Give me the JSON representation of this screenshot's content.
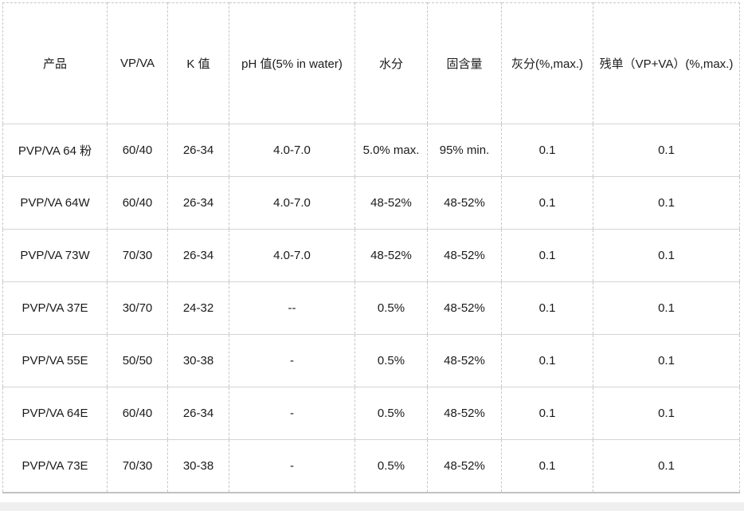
{
  "table": {
    "columns": [
      {
        "key": "product",
        "label": "产品"
      },
      {
        "key": "vpva",
        "label": "VP/VA"
      },
      {
        "key": "kvalue",
        "label": "K 值"
      },
      {
        "key": "ph",
        "label": "pH 值(5% in water)"
      },
      {
        "key": "moisture",
        "label": "水分"
      },
      {
        "key": "solids",
        "label": "固含量"
      },
      {
        "key": "ash",
        "label": "灰分(%,max.)"
      },
      {
        "key": "residual",
        "label": "残单（VP+VA）(%,max.)"
      }
    ],
    "rows": [
      [
        "PVP/VA 64 粉",
        "60/40",
        "26-34",
        "4.0-7.0",
        "5.0% max.",
        "95% min.",
        "0.1",
        "0.1"
      ],
      [
        "PVP/VA 64W",
        "60/40",
        "26-34",
        "4.0-7.0",
        "48-52%",
        "48-52%",
        "0.1",
        "0.1"
      ],
      [
        "PVP/VA 73W",
        "70/30",
        "26-34",
        "4.0-7.0",
        "48-52%",
        "48-52%",
        "0.1",
        "0.1"
      ],
      [
        "PVP/VA 37E",
        "30/70",
        "24-32",
        "--",
        "0.5%",
        "48-52%",
        "0.1",
        "0.1"
      ],
      [
        "PVP/VA 55E",
        "50/50",
        "30-38",
        "-",
        "0.5%",
        "48-52%",
        "0.1",
        "0.1"
      ],
      [
        "PVP/VA 64E",
        "60/40",
        "26-34",
        "-",
        "0.5%",
        "48-52%",
        "0.1",
        "0.1"
      ],
      [
        "PVP/VA 73E",
        "70/30",
        "30-38",
        "-",
        "0.5%",
        "48-52%",
        "0.1",
        "0.1"
      ]
    ]
  },
  "colors": {
    "border": "#c6c6c6",
    "row_line": "#d4d4d4",
    "text": "#1b1b1b",
    "cell_background": "#ffffff",
    "bottom_strip_background": "#efefef"
  }
}
